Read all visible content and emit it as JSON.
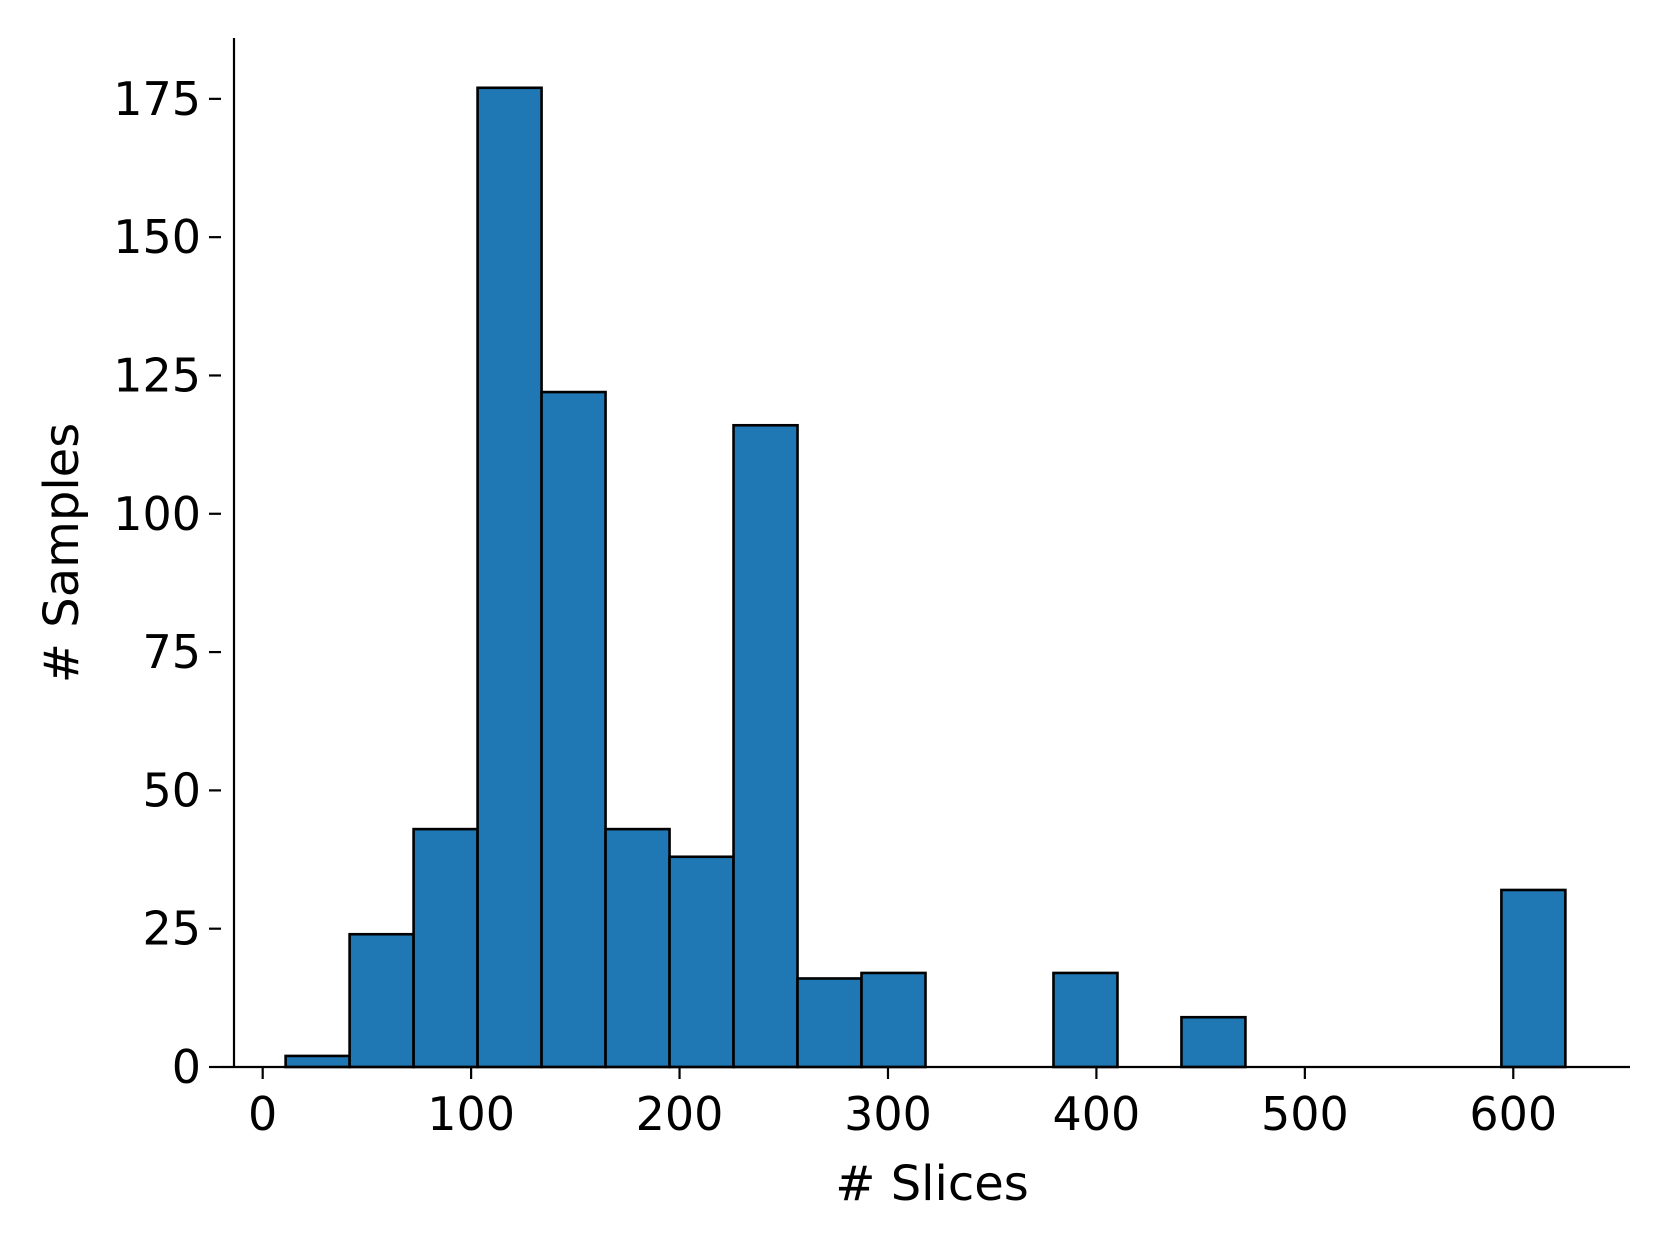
{
  "chart_data": {
    "type": "bar",
    "subtype": "histogram",
    "title": "",
    "xlabel": "# Slices",
    "ylabel": "# Samples",
    "xlim": [
      -20,
      656
    ],
    "ylim": [
      0,
      186
    ],
    "xticks": [
      0,
      100,
      200,
      300,
      400,
      500,
      600
    ],
    "yticks": [
      0,
      25,
      50,
      75,
      100,
      125,
      150,
      175
    ],
    "bin_edges": [
      11,
      41.7,
      72.4,
      103.1,
      133.8,
      164.5,
      195.2,
      225.9,
      256.6,
      287.3,
      318,
      348.7,
      379.4,
      410.1,
      440.8,
      471.5,
      502.2,
      532.9,
      563.6,
      594.3,
      625
    ],
    "counts": [
      2,
      24,
      43,
      177,
      122,
      43,
      38,
      116,
      16,
      17,
      0,
      0,
      17,
      0,
      9,
      0,
      0,
      0,
      0,
      32
    ],
    "grid": false,
    "colors": {
      "bar_fill": "#1f77b4",
      "bar_edge": "#000000",
      "axis": "#000000"
    }
  }
}
